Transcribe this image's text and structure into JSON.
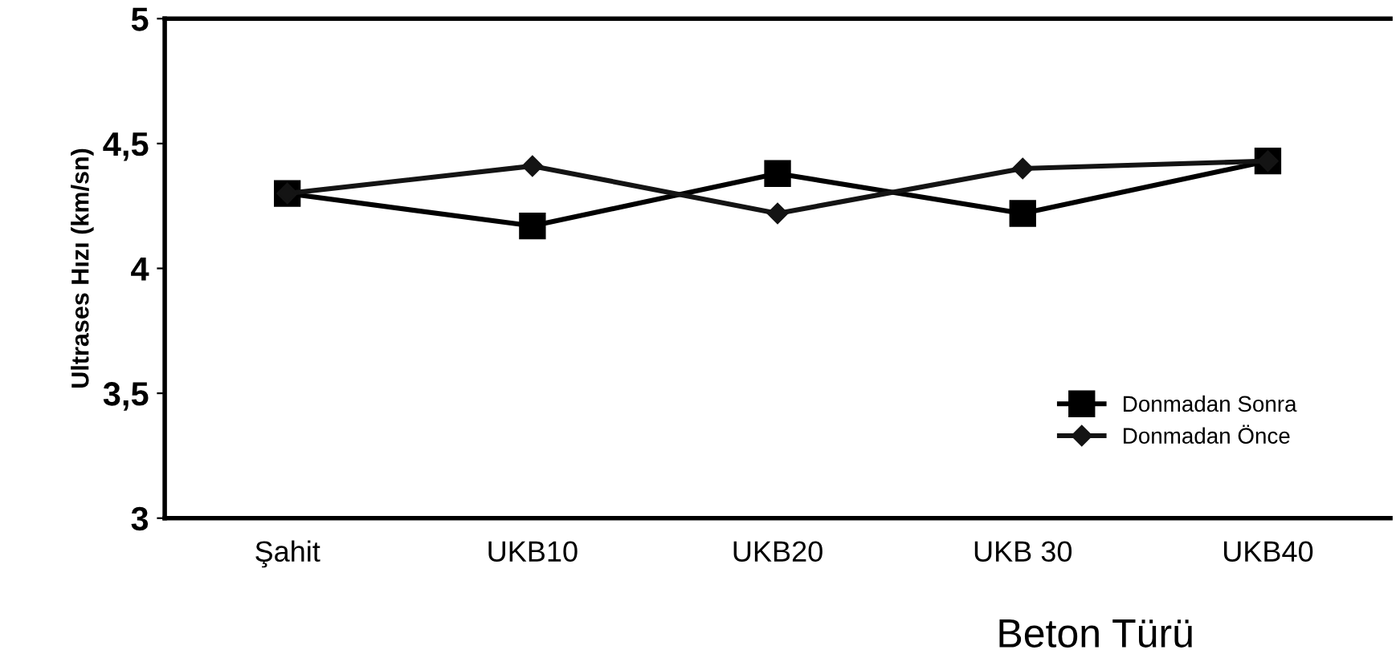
{
  "chart_data": {
    "type": "line",
    "xlabel": "Beton Türü",
    "ylabel": "Ultrases Hızı (km/sn)",
    "categories": [
      "Şahit",
      "UKB10",
      "UKB20",
      "UKB 30",
      "UKB40"
    ],
    "series": [
      {
        "name": "Donmadan Sonra",
        "color": "#000000",
        "marker": "square",
        "values": [
          4.3,
          4.17,
          4.38,
          4.22,
          4.43
        ]
      },
      {
        "name": "Donmadan Önce",
        "color": "#141414",
        "marker": "diamond",
        "values": [
          4.3,
          4.41,
          4.22,
          4.4,
          4.43
        ]
      }
    ],
    "ylim": [
      3,
      5
    ],
    "yticks": [
      3,
      {
        "value": 3.5,
        "label": "3,5"
      },
      4,
      {
        "value": 4.5,
        "label": "4,5"
      },
      5
    ],
    "grid": false,
    "legend": "bottom right",
    "line_style": "solid"
  }
}
